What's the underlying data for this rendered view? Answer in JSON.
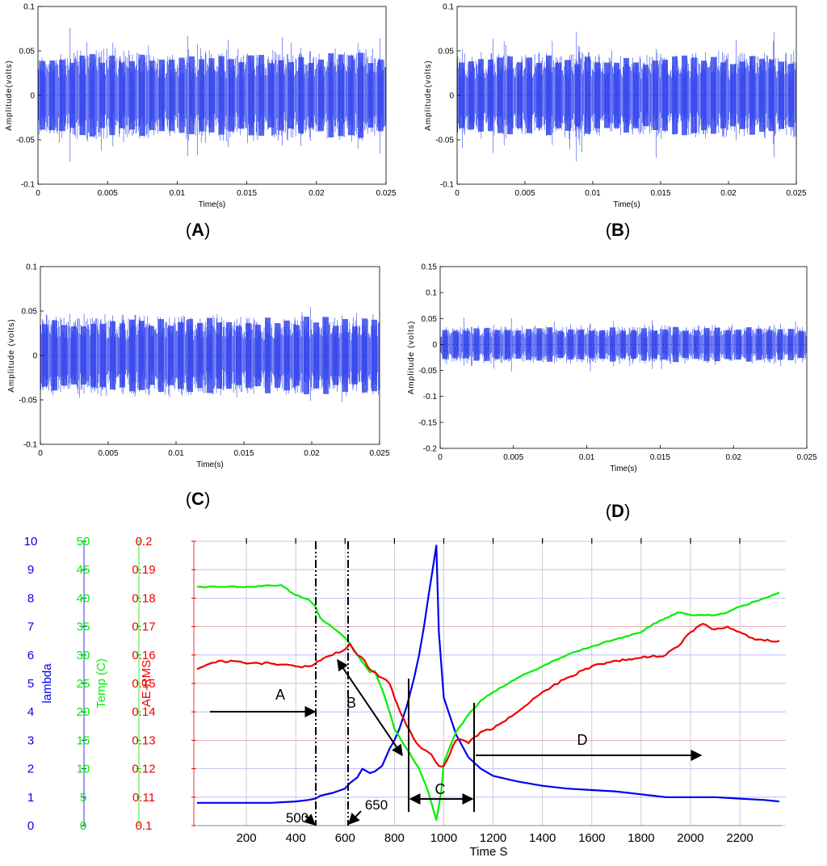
{
  "panels": [
    {
      "label": "A",
      "ylabel": "Amplitude(volts)",
      "xlabel": "Time(s)",
      "xticks": [
        "0",
        "0.005",
        "0.01",
        "0.015",
        "0.02",
        "0.025"
      ],
      "yticks": [
        "0.1",
        "0.05",
        "0",
        "-0.05",
        "-0.1"
      ]
    },
    {
      "label": "B",
      "ylabel": "Amplitude(volts)",
      "xlabel": "Time(s)",
      "xticks": [
        "0",
        "0.005",
        "0.01",
        "0.015",
        "0.02",
        "0.025"
      ],
      "yticks": [
        "0.1",
        "0.05",
        "0",
        "-0.05",
        "-0.1"
      ]
    },
    {
      "label": "C",
      "ylabel": "Amplitude (volts)",
      "xlabel": "Time(s)",
      "xticks": [
        "0",
        "0.005",
        "0.01",
        "0.015",
        "0.02",
        "0.025"
      ],
      "yticks": [
        "0.1",
        "0.05",
        "0",
        "-0.05",
        "-0.1"
      ]
    },
    {
      "label": "D",
      "ylabel": "Amplitude (volts)",
      "xlabel": "Time(s)",
      "xticks": [
        "0",
        "0.005",
        "0.01",
        "0.015",
        "0.02",
        "0.025"
      ],
      "yticks": [
        "0.15",
        "0.1",
        "0.05",
        "0",
        "-0.05",
        "-0.1",
        "-0.15",
        "-0.2"
      ]
    }
  ],
  "main": {
    "xlabel": "Time S",
    "xticks": [
      "200",
      "400",
      "600",
      "800",
      "1000",
      "1200",
      "1400",
      "1600",
      "1800",
      "2000",
      "2200"
    ],
    "axis_titles": {
      "lambda": "lambda",
      "temp": "Temp (C)",
      "ae": "AE-RMS"
    },
    "lambda_ticks": [
      "10",
      "9",
      "8",
      "7",
      "6",
      "5",
      "4",
      "3",
      "2",
      "1",
      "0"
    ],
    "temp_ticks": [
      "50",
      "45",
      "40",
      "35",
      "30",
      "25",
      "20",
      "15",
      "10",
      "5",
      "0"
    ],
    "ae_ticks": [
      "0.2",
      "0.19",
      "0.18",
      "0.17",
      "0.16",
      "0.15",
      "0.14",
      "0.13",
      "0.12",
      "0.11",
      "0.1"
    ],
    "annotations": {
      "region_a": "A",
      "region_b": "B",
      "region_c": "C",
      "region_d": "D",
      "mark_500": "500",
      "mark_650": "650"
    },
    "colors": {
      "lambda": "#0000ee",
      "temp": "#00ee00",
      "ae": "#ee0000"
    }
  },
  "chart_data": [
    {
      "type": "line",
      "title": "(A)",
      "xlabel": "Time(s)",
      "ylabel": "Amplitude(volts)",
      "xlim": [
        0,
        0.025
      ],
      "ylim": [
        -0.1,
        0.1
      ],
      "description_series": [
        {
          "envelope_typical": 0.045,
          "peak_max": 0.095,
          "peak_min": -0.095
        }
      ]
    },
    {
      "type": "line",
      "title": "(B)",
      "xlabel": "Time(s)",
      "ylabel": "Amplitude(volts)",
      "xlim": [
        0,
        0.025
      ],
      "ylim": [
        -0.1,
        0.1
      ],
      "description_series": [
        {
          "envelope_typical": 0.04,
          "peak_max": 0.09,
          "peak_min": -0.09
        }
      ]
    },
    {
      "type": "line",
      "title": "(C)",
      "xlabel": "Time(s)",
      "ylabel": "Amplitude (volts)",
      "xlim": [
        0,
        0.025
      ],
      "ylim": [
        -0.1,
        0.1
      ],
      "description_series": [
        {
          "envelope_typical": 0.04,
          "peak_max": 0.07,
          "peak_min": -0.07
        }
      ]
    },
    {
      "type": "line",
      "title": "(D)",
      "xlabel": "Time(s)",
      "ylabel": "Amplitude (volts)",
      "xlim": [
        0,
        0.025
      ],
      "ylim": [
        -0.2,
        0.15
      ],
      "description_series": [
        {
          "envelope_typical": 0.03,
          "peak_max": 0.09,
          "peak_min": -0.09
        }
      ]
    },
    {
      "type": "line",
      "xlabel": "Time S",
      "xlim": [
        0,
        2370
      ],
      "series": [
        {
          "axis": "lambda",
          "ylim": [
            0,
            10
          ],
          "x": [
            0,
            100,
            200,
            300,
            400,
            450,
            480,
            500,
            550,
            600,
            620,
            650,
            670,
            700,
            720,
            750,
            780,
            800,
            820,
            850,
            880,
            900,
            920,
            940,
            955,
            970,
            980,
            1000,
            1050,
            1100,
            1150,
            1200,
            1300,
            1400,
            1500,
            1600,
            1700,
            1750,
            1800,
            1850,
            1900,
            2000,
            2100,
            2200,
            2300,
            2360
          ],
          "y": [
            0.8,
            0.8,
            0.8,
            0.8,
            0.85,
            0.9,
            0.95,
            1.05,
            1.15,
            1.3,
            1.5,
            1.7,
            2.0,
            1.85,
            1.9,
            2.1,
            2.7,
            3.0,
            3.4,
            4.2,
            5.2,
            6.0,
            7.0,
            8.2,
            9.0,
            9.85,
            6.8,
            4.5,
            3.2,
            2.4,
            2.0,
            1.75,
            1.55,
            1.4,
            1.3,
            1.25,
            1.2,
            1.15,
            1.1,
            1.05,
            1.0,
            1.0,
            1.0,
            0.95,
            0.9,
            0.85
          ]
        },
        {
          "axis": "temp",
          "ylim": [
            0,
            50
          ],
          "x": [
            0,
            100,
            200,
            300,
            340,
            400,
            450,
            480,
            500,
            550,
            600,
            650,
            700,
            720,
            750,
            780,
            800,
            850,
            900,
            930,
            950,
            970,
            990,
            1000,
            1050,
            1100,
            1150,
            1200,
            1300,
            1400,
            1500,
            1600,
            1700,
            1800,
            1850,
            1900,
            1950,
            2000,
            2050,
            2100,
            2150,
            2200,
            2300,
            2360
          ],
          "y": [
            42,
            42,
            42,
            42.2,
            42.3,
            40.5,
            39.8,
            38.5,
            36.5,
            34.8,
            33.0,
            30.0,
            27.0,
            27.2,
            24.0,
            20.0,
            17.0,
            13.5,
            10.0,
            6.8,
            4.0,
            1.0,
            6.0,
            11.0,
            16.5,
            19.5,
            22.0,
            23.5,
            26.0,
            28.0,
            30.0,
            31.5,
            32.8,
            34.0,
            35.5,
            36.5,
            37.5,
            37.0,
            37.0,
            37.0,
            37.5,
            38.5,
            40.0,
            41.0
          ]
        },
        {
          "axis": "ae",
          "ylim": [
            0.1,
            0.2
          ],
          "x": [
            0,
            100,
            200,
            300,
            400,
            450,
            480,
            500,
            550,
            600,
            620,
            650,
            680,
            700,
            750,
            780,
            800,
            850,
            900,
            950,
            980,
            1000,
            1050,
            1080,
            1100,
            1150,
            1200,
            1300,
            1400,
            1500,
            1600,
            1700,
            1800,
            1900,
            1950,
            2000,
            2050,
            2100,
            2150,
            2200,
            2250,
            2300,
            2360
          ],
          "y": [
            0.155,
            0.158,
            0.157,
            0.157,
            0.156,
            0.156,
            0.157,
            0.158,
            0.16,
            0.162,
            0.164,
            0.16,
            0.158,
            0.155,
            0.152,
            0.15,
            0.145,
            0.135,
            0.128,
            0.125,
            0.121,
            0.121,
            0.13,
            0.13,
            0.129,
            0.133,
            0.134,
            0.14,
            0.147,
            0.152,
            0.156,
            0.158,
            0.159,
            0.16,
            0.163,
            0.168,
            0.171,
            0.169,
            0.17,
            0.168,
            0.166,
            0.165,
            0.165
          ]
        }
      ],
      "vertical_markers": [
        500,
        650
      ],
      "regions": [
        "A",
        "B",
        "C",
        "D"
      ]
    }
  ]
}
